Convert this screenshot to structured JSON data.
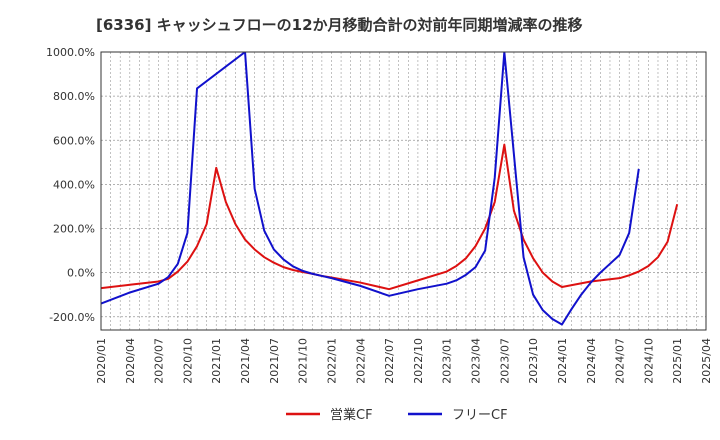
{
  "chart_data": {
    "type": "line",
    "title": "[6336]  キャッシュフローの12か月移動合計の対前年同期増減率の推移",
    "xlabel": "",
    "ylabel": "",
    "ylim": [
      -260,
      1000
    ],
    "y_ticks": [
      1000,
      800,
      600,
      400,
      200,
      0,
      -200
    ],
    "y_tick_labels": [
      "1000.0%",
      "800.0%",
      "600.0%",
      "400.0%",
      "200.0%",
      "0.0%",
      "-200.0%"
    ],
    "x_ticks": [
      "2020/01",
      "2020/04",
      "2020/07",
      "2020/10",
      "2021/01",
      "2021/04",
      "2021/07",
      "2021/10",
      "2022/01",
      "2022/04",
      "2022/07",
      "2022/10",
      "2023/01",
      "2023/04",
      "2023/07",
      "2023/10",
      "2024/01",
      "2024/04",
      "2024/07",
      "2024/10",
      "2025/01",
      "2025/04"
    ],
    "grid": true,
    "legend_placement": "bottom",
    "series": [
      {
        "name": "営業CF",
        "color": "#dd1111",
        "points": [
          [
            "2020/01",
            -70
          ],
          [
            "2020/04",
            -55
          ],
          [
            "2020/07",
            -40
          ],
          [
            "2020/08",
            -28
          ],
          [
            "2020/09",
            5
          ],
          [
            "2020/10",
            50
          ],
          [
            "2020/11",
            120
          ],
          [
            "2020/12",
            220
          ],
          [
            "2021/01",
            475
          ],
          [
            "2021/02",
            320
          ],
          [
            "2021/03",
            220
          ],
          [
            "2021/04",
            150
          ],
          [
            "2021/05",
            105
          ],
          [
            "2021/06",
            70
          ],
          [
            "2021/07",
            45
          ],
          [
            "2021/08",
            25
          ],
          [
            "2021/09",
            12
          ],
          [
            "2021/10",
            3
          ],
          [
            "2021/11",
            -5
          ],
          [
            "2021/12",
            -15
          ],
          [
            "2022/01",
            -22
          ],
          [
            "2022/04",
            -45
          ],
          [
            "2022/07",
            -75
          ],
          [
            "2022/10",
            -35
          ],
          [
            "2023/01",
            5
          ],
          [
            "2023/02",
            30
          ],
          [
            "2023/03",
            65
          ],
          [
            "2023/04",
            120
          ],
          [
            "2023/05",
            200
          ],
          [
            "2023/06",
            320
          ],
          [
            "2023/07",
            580
          ],
          [
            "2023/08",
            280
          ],
          [
            "2023/09",
            150
          ],
          [
            "2023/10",
            65
          ],
          [
            "2023/11",
            0
          ],
          [
            "2023/12",
            -40
          ],
          [
            "2024/01",
            -65
          ],
          [
            "2024/04",
            -40
          ],
          [
            "2024/07",
            -25
          ],
          [
            "2024/08",
            -12
          ],
          [
            "2024/09",
            5
          ],
          [
            "2024/10",
            30
          ],
          [
            "2024/11",
            70
          ],
          [
            "2024/12",
            140
          ],
          [
            "2025/01",
            310
          ]
        ]
      },
      {
        "name": "フリーCF",
        "color": "#1111cc",
        "points": [
          [
            "2020/01",
            -140
          ],
          [
            "2020/04",
            -90
          ],
          [
            "2020/07",
            -50
          ],
          [
            "2020/08",
            -20
          ],
          [
            "2020/09",
            40
          ],
          [
            "2020/10",
            180
          ],
          [
            "2020/11",
            835
          ],
          [
            "2021/04",
            1000
          ],
          [
            "2021/05",
            380
          ],
          [
            "2021/06",
            190
          ],
          [
            "2021/07",
            105
          ],
          [
            "2021/08",
            60
          ],
          [
            "2021/09",
            28
          ],
          [
            "2021/10",
            8
          ],
          [
            "2021/11",
            -5
          ],
          [
            "2021/12",
            -15
          ],
          [
            "2022/01",
            -25
          ],
          [
            "2022/04",
            -60
          ],
          [
            "2022/07",
            -105
          ],
          [
            "2022/10",
            -75
          ],
          [
            "2023/01",
            -50
          ],
          [
            "2023/02",
            -35
          ],
          [
            "2023/03",
            -10
          ],
          [
            "2023/04",
            25
          ],
          [
            "2023/05",
            100
          ],
          [
            "2023/06",
            430
          ],
          [
            "2023/07",
            1000
          ],
          [
            "2023/09",
            70
          ],
          [
            "2023/10",
            -100
          ],
          [
            "2023/11",
            -170
          ],
          [
            "2023/12",
            -210
          ],
          [
            "2024/01",
            -235
          ],
          [
            "2024/02",
            -165
          ],
          [
            "2024/03",
            -100
          ],
          [
            "2024/04",
            -45
          ],
          [
            "2024/05",
            0
          ],
          [
            "2024/06",
            40
          ],
          [
            "2024/07",
            80
          ],
          [
            "2024/08",
            180
          ],
          [
            "2024/09",
            470
          ]
        ]
      }
    ]
  }
}
